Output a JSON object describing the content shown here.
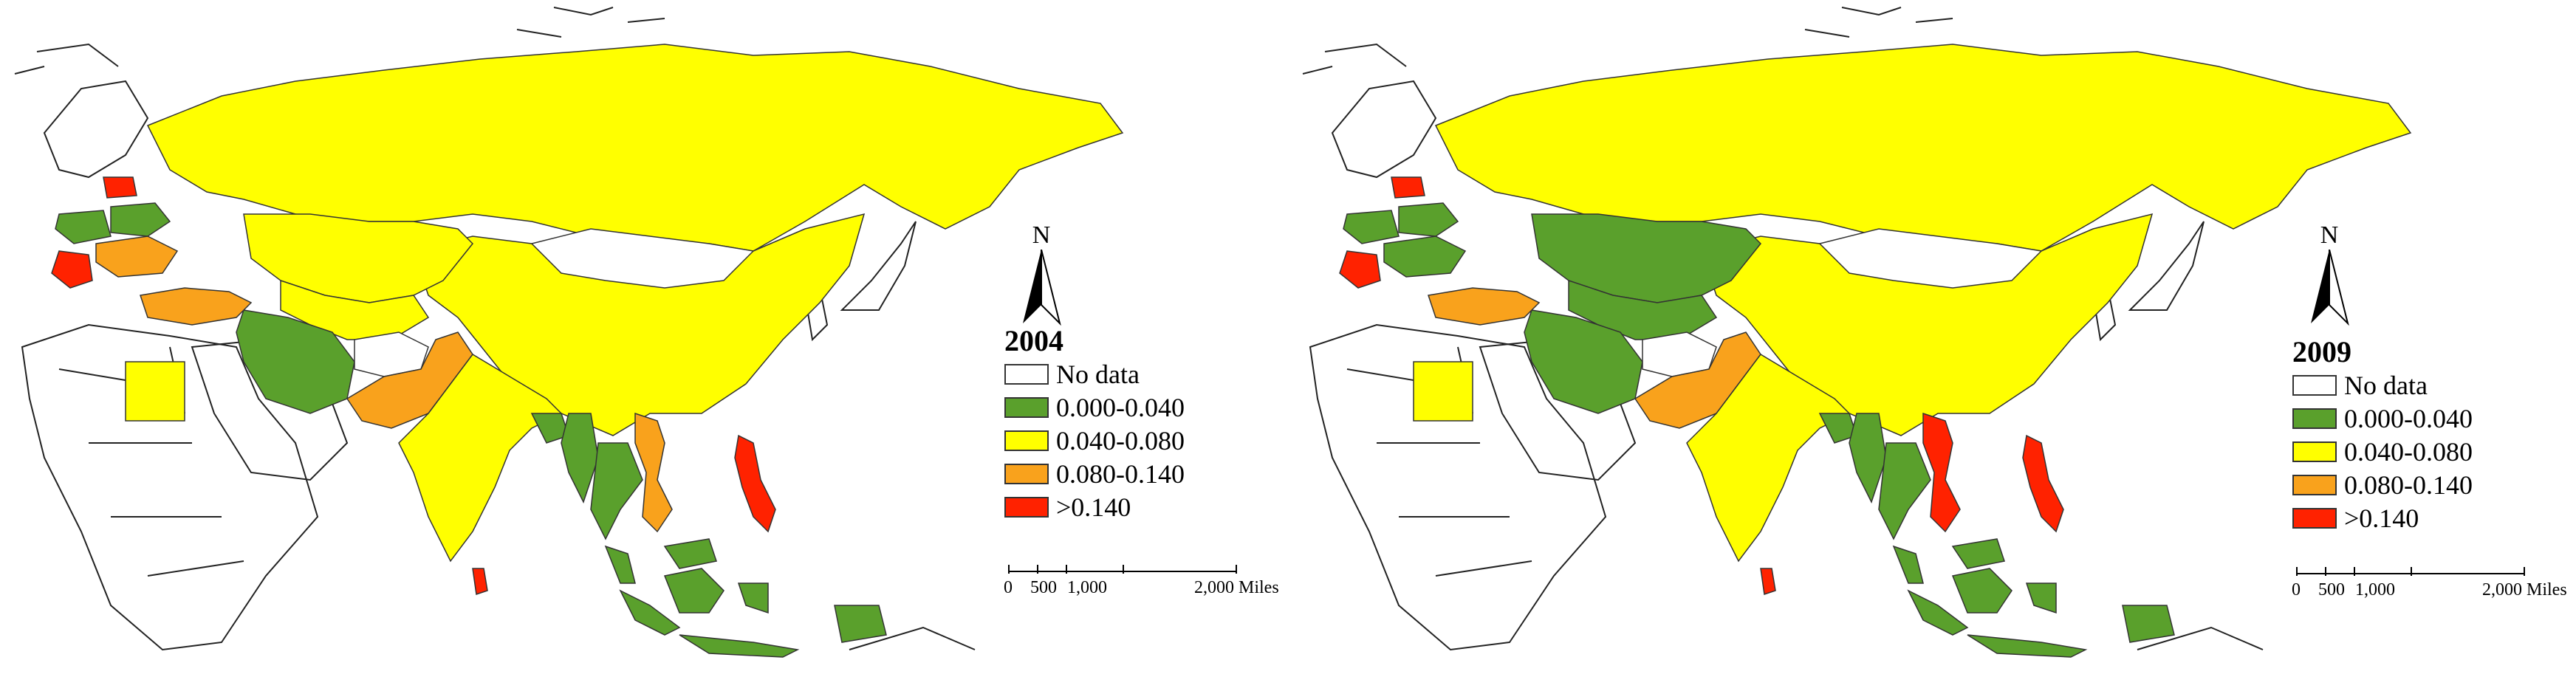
{
  "colors": {
    "no_data": "#ffffff",
    "c1": "#5aa02c",
    "c2": "#ffff00",
    "c3": "#f9a21c",
    "c4": "#ff2200",
    "outline": "#222222"
  },
  "north_label": "N",
  "legend_labels": [
    "No data",
    "0.000-0.040",
    "0.040-0.080",
    "0.080-0.140",
    ">0.140"
  ],
  "scale": {
    "ticks": [
      "0",
      "500",
      "1,000",
      "2,000 Miles"
    ]
  },
  "maps": [
    {
      "year": "2004",
      "regions": {
        "russia": "c2",
        "china": "c2",
        "mongolia": "no_data",
        "kazakhstan": "c2",
        "central_asia": "c2",
        "iran": "c1",
        "afghanistan": "no_data",
        "pakistan": "c3",
        "india": "c2",
        "sri_lanka": "c4",
        "turkey": "c3",
        "egypt": "c2",
        "thailand": "c1",
        "vietnam": "c3",
        "philippines": "c4",
        "indonesia": "c1",
        "malaysia": "c1",
        "ukraine": "c3",
        "belarus": "c1",
        "poland": "c1",
        "baltic": "c4",
        "balkans": "c4",
        "myanmar": "c1",
        "bangladesh": "c1",
        "korea": "no_data",
        "japan": "no_data"
      }
    },
    {
      "year": "2009",
      "regions": {
        "russia": "c2",
        "china": "c2",
        "mongolia": "no_data",
        "kazakhstan": "c1",
        "central_asia": "c1",
        "iran": "c1",
        "afghanistan": "no_data",
        "pakistan": "c3",
        "india": "c2",
        "sri_lanka": "c4",
        "turkey": "c3",
        "egypt": "c2",
        "thailand": "c1",
        "vietnam": "c4",
        "philippines": "c4",
        "indonesia": "c1",
        "malaysia": "c1",
        "ukraine": "c1",
        "belarus": "c1",
        "poland": "c1",
        "baltic": "c4",
        "balkans": "c4",
        "myanmar": "c1",
        "bangladesh": "c1",
        "korea": "no_data",
        "japan": "no_data"
      }
    }
  ]
}
